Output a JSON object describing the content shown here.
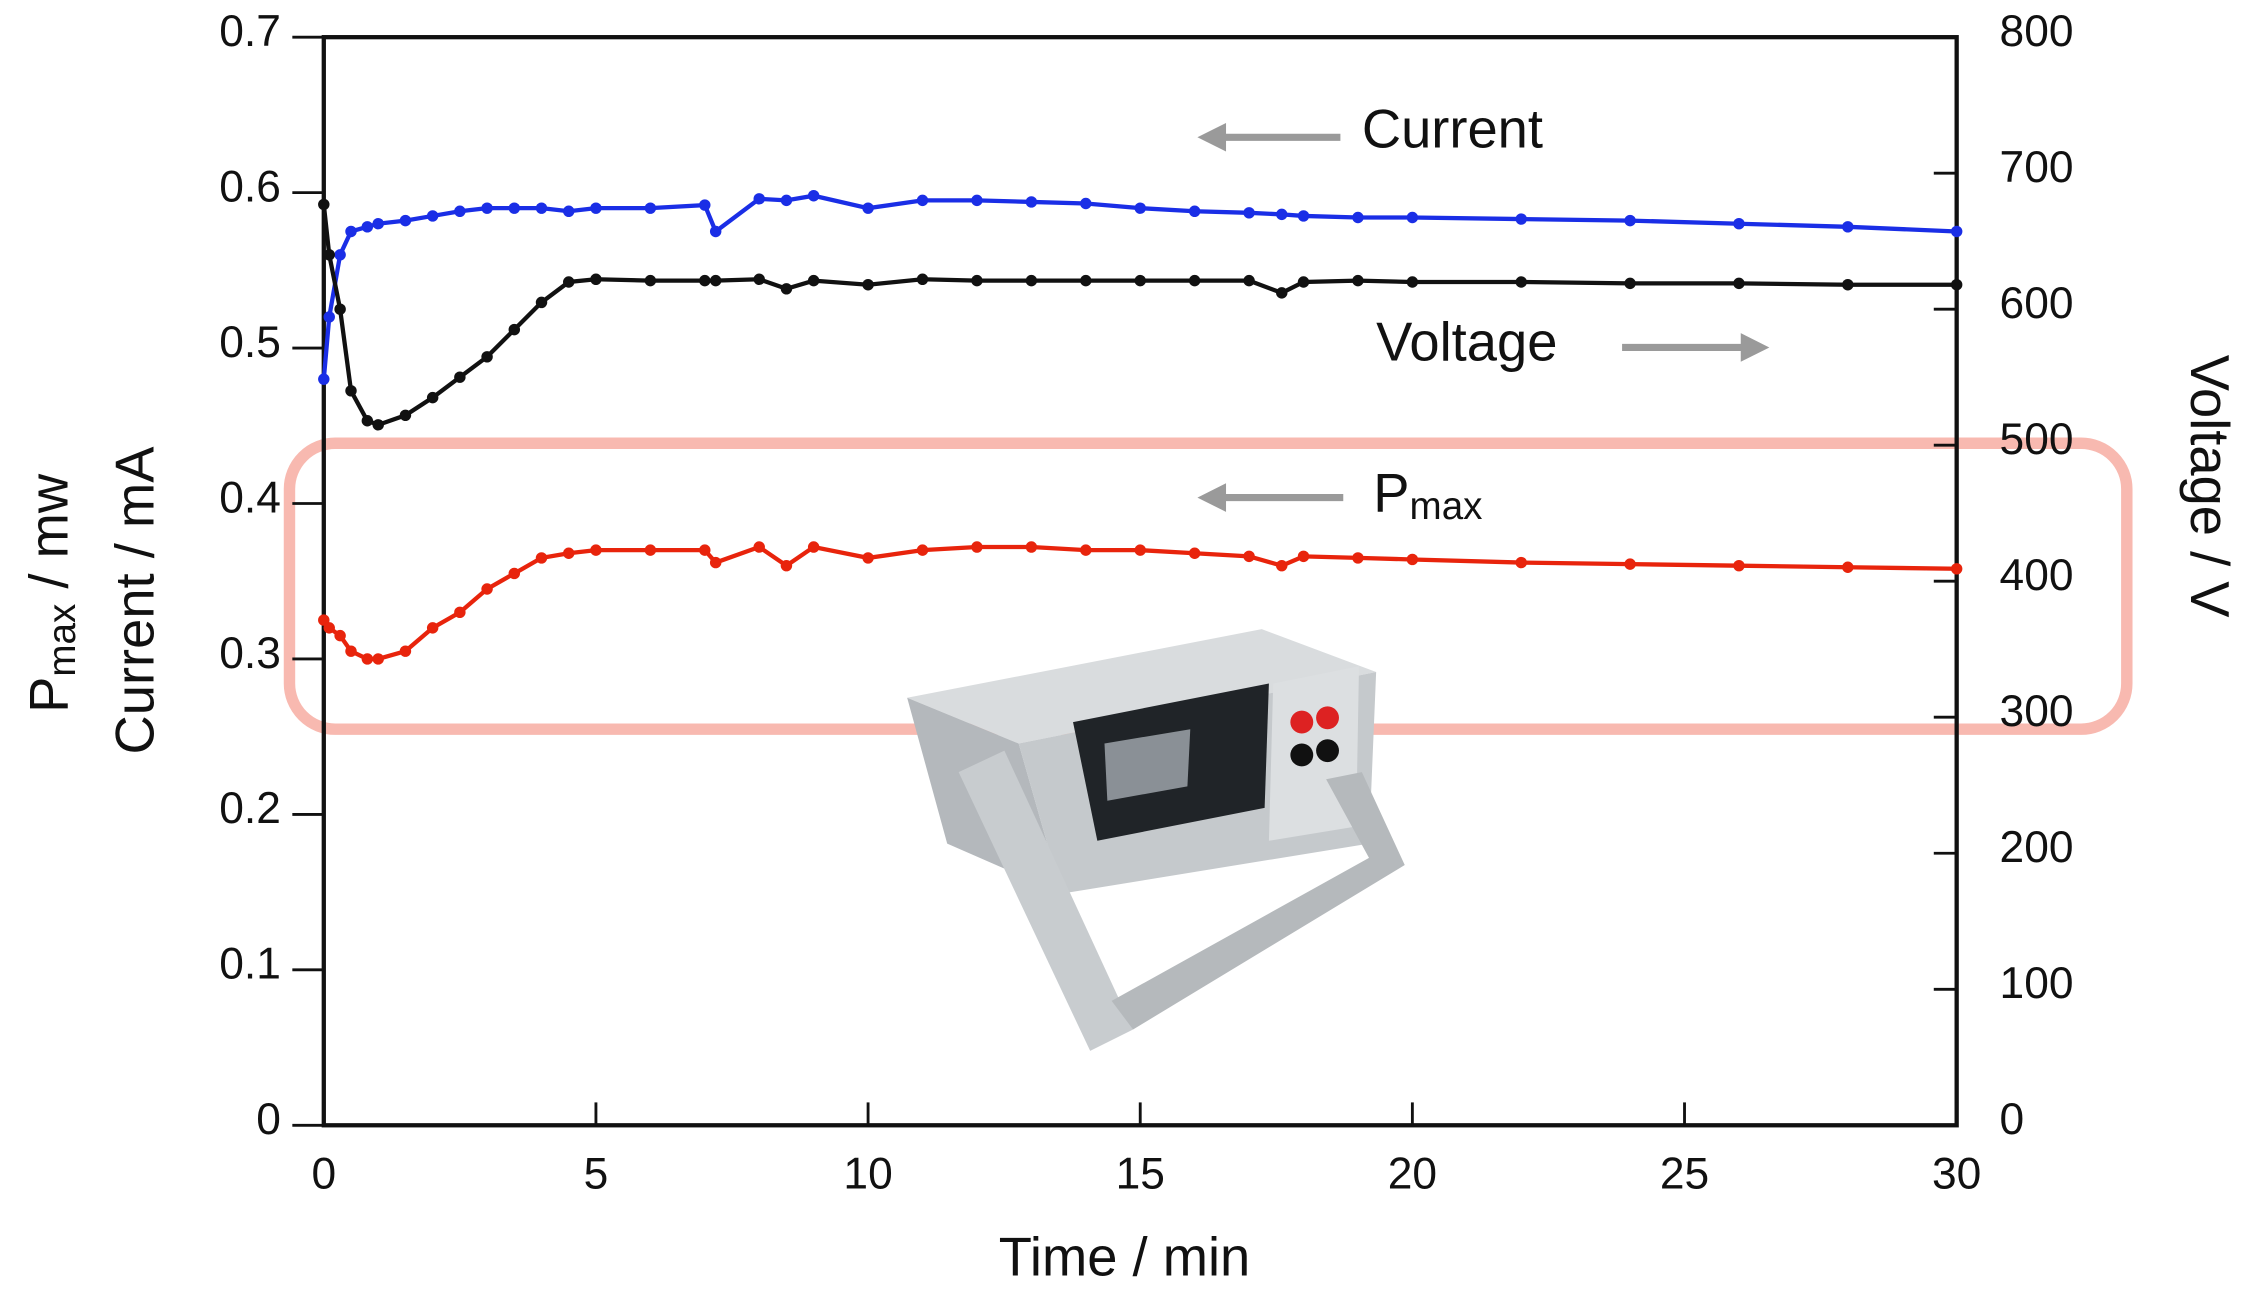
{
  "chart_data": {
    "type": "line",
    "xlabel": "Time / min",
    "ylabel": "Current / mA",
    "ylabel_pmax": {
      "text": "P",
      "sub": "max",
      "rest": " / mw"
    },
    "y2label": "Voltage / V",
    "xlim": [
      0,
      30
    ],
    "xticks": [
      0,
      5,
      10,
      15,
      20,
      25,
      30
    ],
    "ylim": [
      0,
      0.7
    ],
    "yticks": [
      0,
      0.1,
      0.2,
      0.3,
      0.4,
      0.5,
      0.6,
      0.7
    ],
    "y2lim": [
      0,
      800
    ],
    "y2ticks": [
      0,
      100,
      200,
      300,
      400,
      500,
      600,
      700,
      800
    ],
    "annotations": [
      {
        "text": "Current"
      },
      {
        "text": "Voltage"
      },
      {
        "text": "P",
        "sub": "max"
      }
    ],
    "x": [
      0,
      0.1,
      0.3,
      0.5,
      0.8,
      1,
      1.5,
      2,
      2.5,
      3,
      3.5,
      4,
      4.5,
      5,
      6,
      7,
      7.2,
      8,
      8.5,
      9,
      10,
      11,
      12,
      13,
      14,
      15,
      16,
      17,
      17.6,
      18,
      19,
      20,
      22,
      24,
      26,
      28,
      30
    ],
    "series": [
      {
        "color": "#1a2ee6",
        "values": [
          0.48,
          0.52,
          0.56,
          0.575,
          0.578,
          0.58,
          0.582,
          0.585,
          0.588,
          0.59,
          0.59,
          0.59,
          0.588,
          0.59,
          0.59,
          0.592,
          0.575,
          0.596,
          0.595,
          0.598,
          0.59,
          0.595,
          0.595,
          0.594,
          0.593,
          0.59,
          0.588,
          0.587,
          0.586,
          0.585,
          0.584,
          0.584,
          0.583,
          0.582,
          0.58,
          0.578,
          0.575
        ]
      },
      {
        "color": "#111111",
        "axis": "y2",
        "values": [
          677,
          640,
          600,
          540,
          518,
          515,
          522,
          535,
          550,
          565,
          585,
          605,
          620,
          622,
          621,
          621,
          621,
          622,
          615,
          621,
          618,
          622,
          621,
          621,
          621,
          621,
          621,
          621,
          612,
          620,
          621,
          620,
          620,
          619,
          619,
          618,
          618
        ]
      },
      {
        "color": "#e8240c",
        "values": [
          0.325,
          0.32,
          0.315,
          0.305,
          0.3,
          0.3,
          0.305,
          0.32,
          0.33,
          0.345,
          0.355,
          0.365,
          0.368,
          0.37,
          0.37,
          0.37,
          0.362,
          0.372,
          0.36,
          0.372,
          0.365,
          0.37,
          0.372,
          0.372,
          0.37,
          0.37,
          0.368,
          0.366,
          0.36,
          0.366,
          0.365,
          0.364,
          0.362,
          0.361,
          0.36,
          0.359,
          0.358
        ]
      }
    ]
  }
}
